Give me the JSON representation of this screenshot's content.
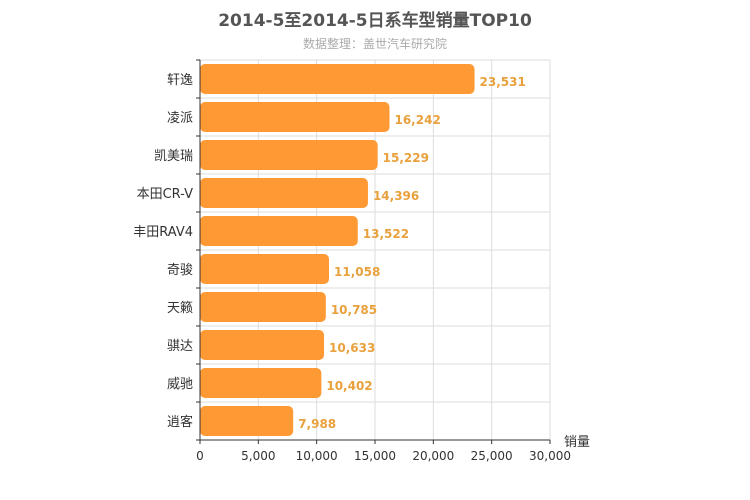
{
  "title": "2014-5至2014-5日系车型销量TOP10",
  "subtitle": "数据整理：盖世汽车研究院",
  "colors": {
    "bar": "#ff9933",
    "data_label": "#e8a13c",
    "grid": "#dddddd",
    "axis": "#333333"
  },
  "chart_data": {
    "type": "bar",
    "orientation": "horizontal",
    "title": "2014-5至2014-5日系车型销量TOP10",
    "subtitle": "数据整理：盖世汽车研究院",
    "xlabel": "销量",
    "ylabel": "",
    "categories": [
      "轩逸",
      "凌派",
      "凯美瑞",
      "本田CR-V",
      "丰田RAV4",
      "奇骏",
      "天籁",
      "骐达",
      "威驰",
      "逍客"
    ],
    "values": [
      23531,
      16242,
      15229,
      14396,
      13522,
      11058,
      10785,
      10633,
      10402,
      7988
    ],
    "value_labels": [
      "23,531",
      "16,242",
      "15,229",
      "14,396",
      "13,522",
      "11,058",
      "10,785",
      "10,633",
      "10,402",
      "7,988"
    ],
    "xlim": [
      0,
      30000
    ],
    "x_ticks": [
      0,
      5000,
      10000,
      15000,
      20000,
      25000,
      30000
    ],
    "x_tick_labels": [
      "0",
      "5,000",
      "10,000",
      "15,000",
      "20,000",
      "25,000",
      "30,000"
    ],
    "grid": true,
    "legend": "none"
  }
}
